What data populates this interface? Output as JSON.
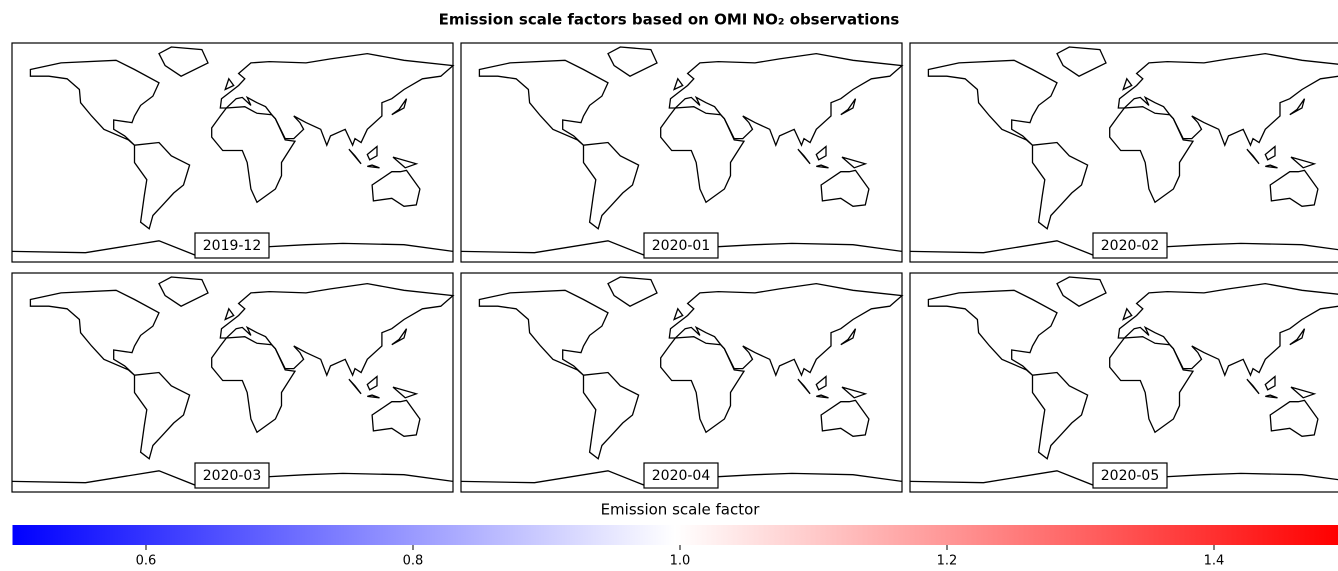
{
  "title": "Emission scale factors based on OMI NO₂ observations",
  "panels": [
    {
      "label": "2019-12"
    },
    {
      "label": "2020-01"
    },
    {
      "label": "2020-02"
    },
    {
      "label": "2020-03"
    },
    {
      "label": "2020-04"
    },
    {
      "label": "2020-05"
    }
  ],
  "colorbar": {
    "label": "Emission scale factor",
    "clim": [
      0.5,
      1.5
    ],
    "ticks": [
      0.6,
      0.8,
      {
        "value": 1,
        "label": "1.0"
      },
      1.2,
      1.4
    ],
    "colors": [
      "#0000ff",
      "#ffffff",
      "#ff0000"
    ]
  }
}
